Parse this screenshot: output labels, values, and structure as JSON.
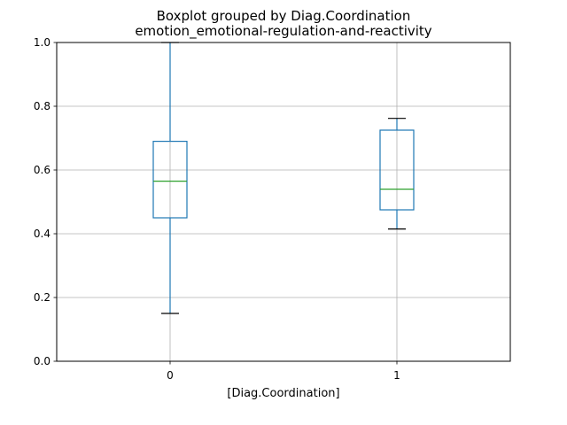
{
  "chart_data": {
    "type": "boxplot",
    "title_line1": "Boxplot grouped by Diag.Coordination",
    "title_line2": "emotion_emotional-regulation-and-reactivity",
    "xlabel": "[Diag.Coordination]",
    "ylabel": "",
    "ylim": [
      0.0,
      1.0
    ],
    "yticks": [
      "0.0",
      "0.2",
      "0.4",
      "0.6",
      "0.8",
      "1.0"
    ],
    "grid": true,
    "categories": [
      "0",
      "1"
    ],
    "boxes": [
      {
        "category": "0",
        "whisker_low": 0.15,
        "q1": 0.45,
        "median": 0.565,
        "q3": 0.69,
        "whisker_high": 1.0
      },
      {
        "category": "1",
        "whisker_low": 0.415,
        "q1": 0.475,
        "median": 0.54,
        "q3": 0.725,
        "whisker_high": 0.762
      }
    ],
    "colors": {
      "box": "#1f77b4",
      "median": "#2ca02c",
      "cap": "#000000",
      "grid": "#b0b0b0"
    }
  }
}
